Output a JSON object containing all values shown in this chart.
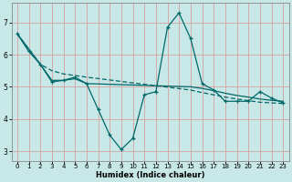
{
  "xlabel": "Humidex (Indice chaleur)",
  "bg_color": "#c8e8e8",
  "grid_color": "#d4a0a0",
  "line_color": "#006868",
  "xlim": [
    -0.5,
    23.5
  ],
  "ylim": [
    2.7,
    7.6
  ],
  "xticks": [
    0,
    1,
    2,
    3,
    4,
    5,
    6,
    7,
    8,
    9,
    10,
    11,
    12,
    13,
    14,
    15,
    16,
    17,
    18,
    19,
    20,
    21,
    22,
    23
  ],
  "yticks": [
    3,
    4,
    5,
    6,
    7
  ],
  "series1_x": [
    0,
    1,
    2,
    3,
    4,
    5,
    6,
    7,
    8,
    9,
    10,
    11,
    12,
    13,
    14,
    15,
    16,
    17,
    18,
    19,
    20,
    21,
    22,
    23
  ],
  "series1_y": [
    6.65,
    6.1,
    5.7,
    5.15,
    5.2,
    5.3,
    5.1,
    4.3,
    3.5,
    3.05,
    3.4,
    4.75,
    4.85,
    6.85,
    7.3,
    6.5,
    5.1,
    4.9,
    4.55,
    4.55,
    4.55,
    4.85,
    4.65,
    4.5
  ],
  "series2_x": [
    0,
    2,
    3,
    4,
    5,
    6,
    15,
    16,
    17,
    18,
    19,
    20,
    21,
    22,
    23
  ],
  "series2_y": [
    6.65,
    5.7,
    5.5,
    5.4,
    5.35,
    5.3,
    4.9,
    4.82,
    4.75,
    4.68,
    4.62,
    4.57,
    4.52,
    4.5,
    4.48
  ],
  "series3_x": [
    0,
    2,
    3,
    4,
    5,
    6,
    15,
    16,
    17,
    18,
    19,
    20,
    21,
    22,
    23
  ],
  "series3_y": [
    6.65,
    5.7,
    5.2,
    5.2,
    5.25,
    5.1,
    5.0,
    4.95,
    4.88,
    4.8,
    4.73,
    4.68,
    4.62,
    4.58,
    4.55
  ]
}
